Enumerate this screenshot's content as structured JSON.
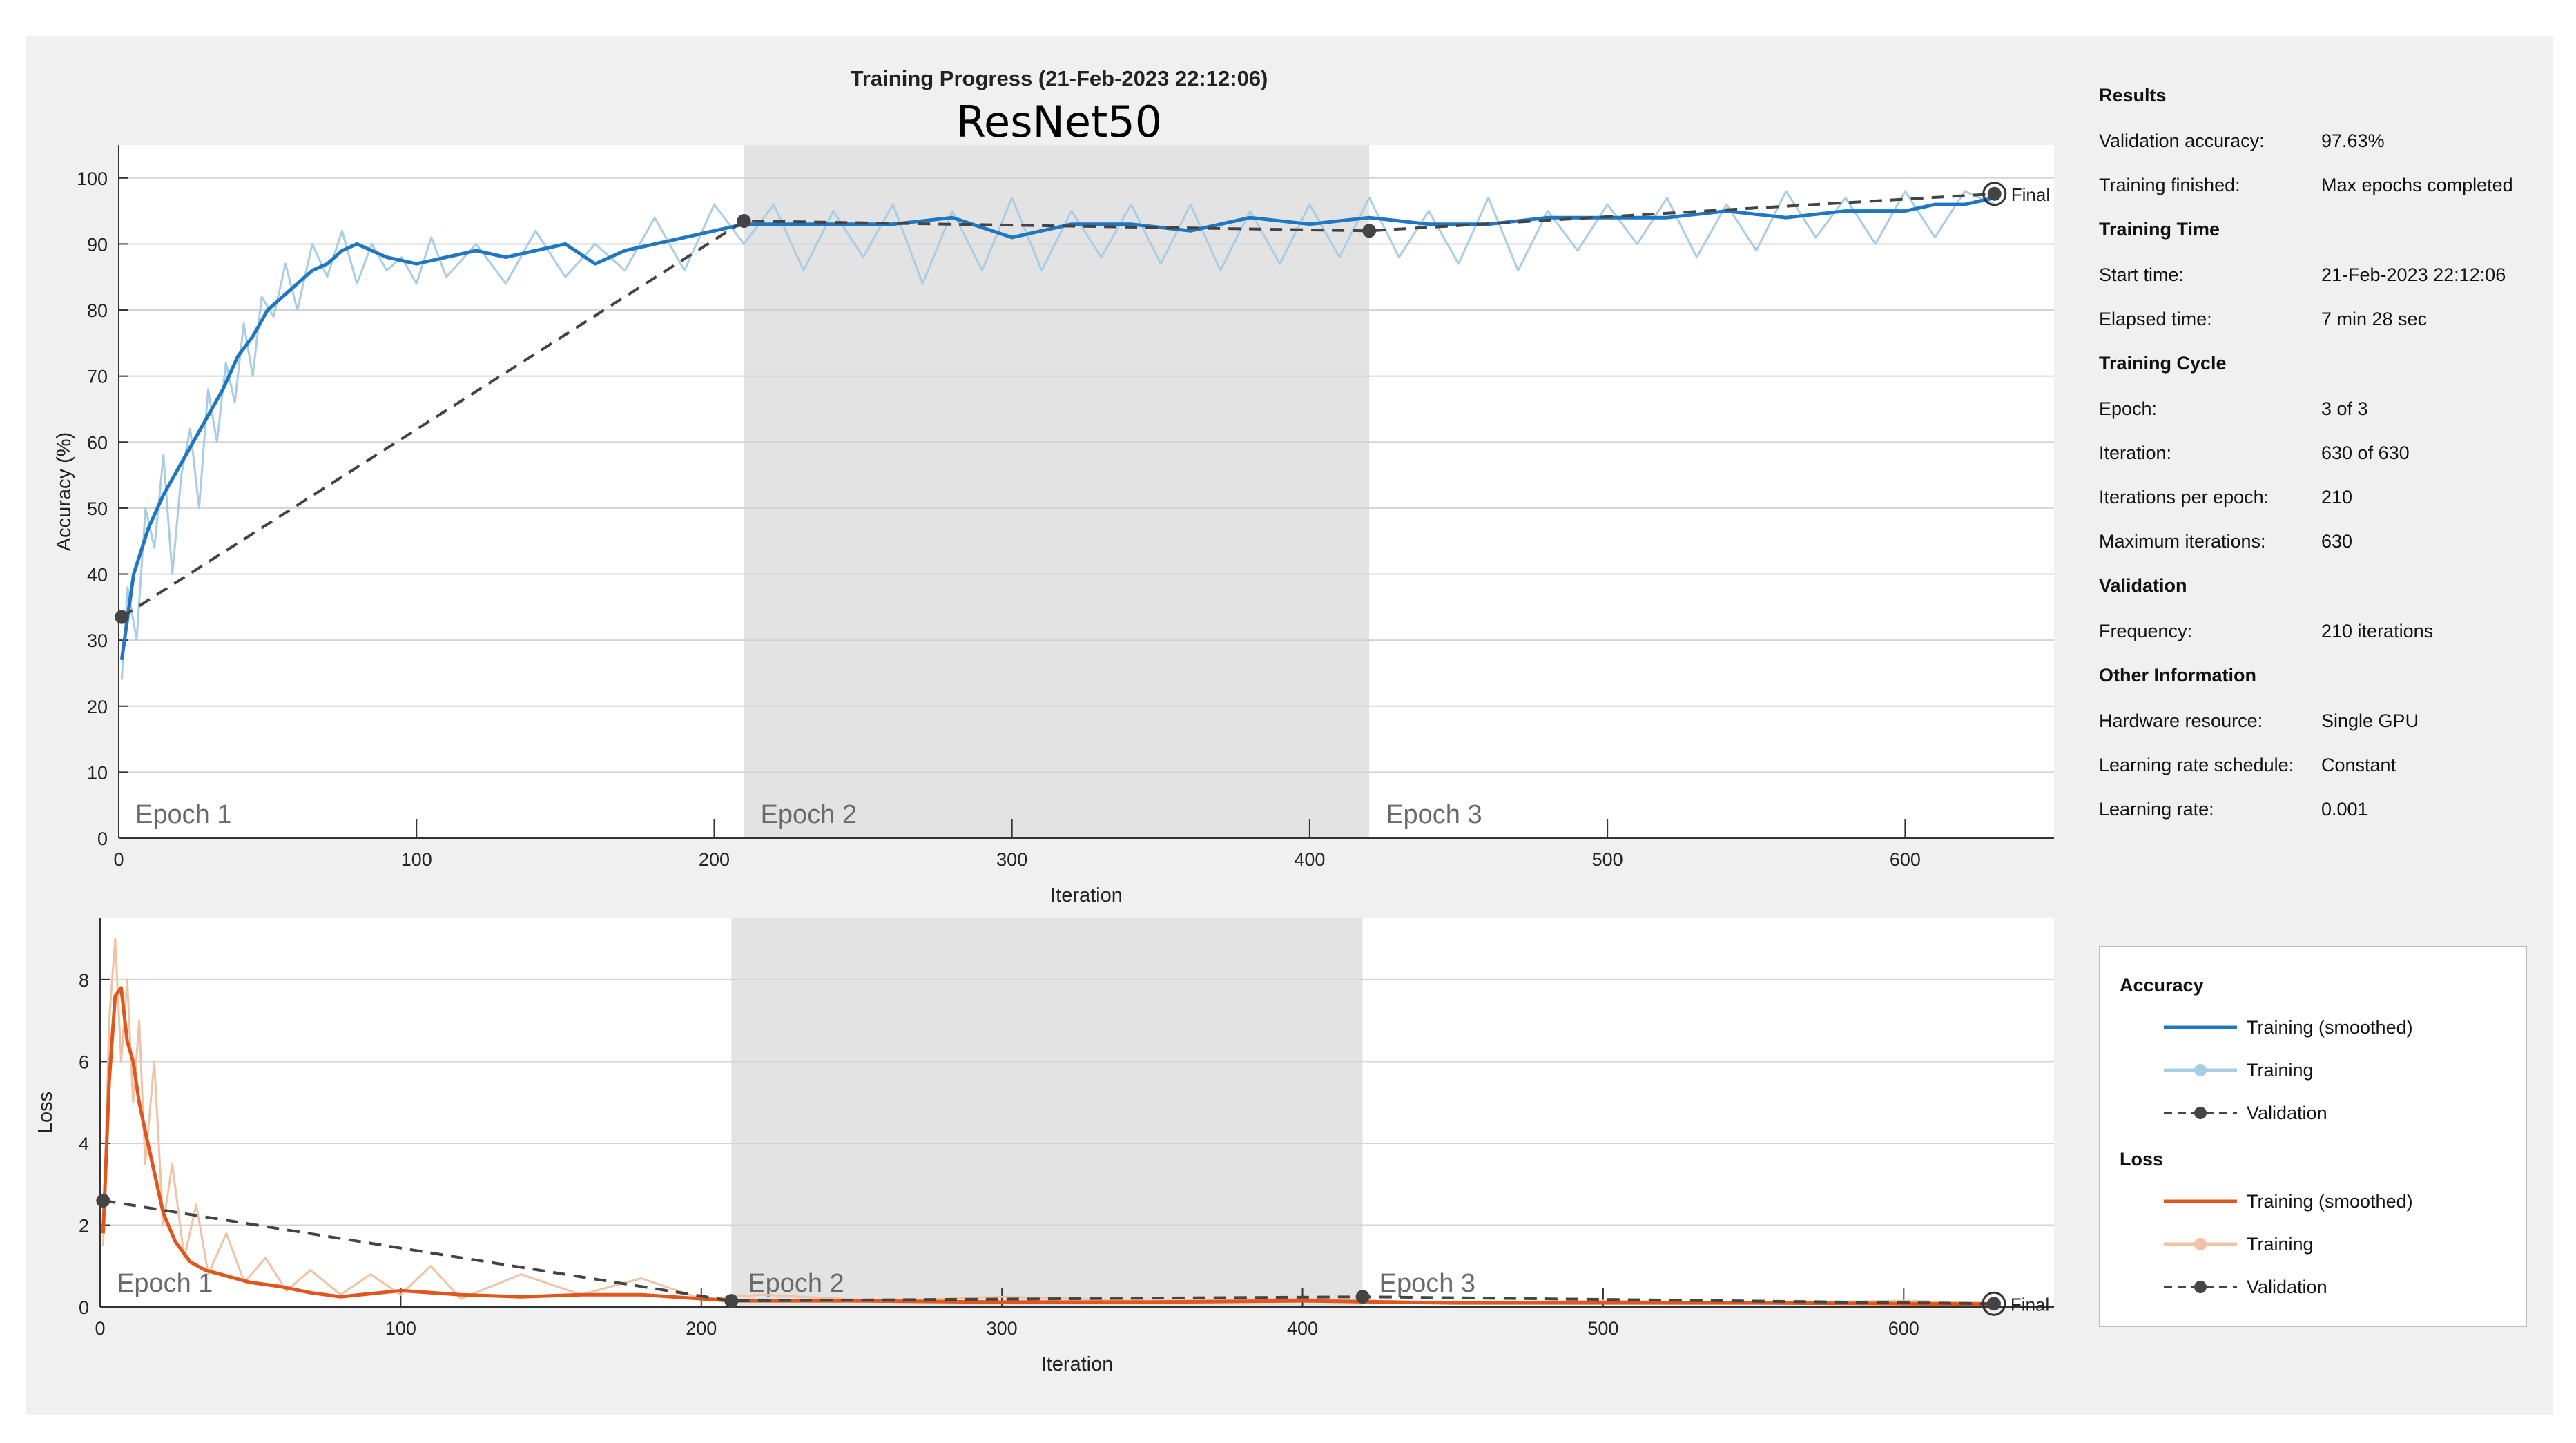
{
  "window": {
    "background": "#f0f0f0"
  },
  "figure": {
    "title": "Training Progress (21-Feb-2023 22:12:06)",
    "subtitle": "ResNet50"
  },
  "colors": {
    "accuracy_smoothed": "#1f77c1",
    "accuracy_raw": "#a9cde4",
    "loss_smoothed": "#e0561c",
    "loss_raw": "#f1c2a4",
    "validation": "#444444",
    "epoch_shade": "#e3e3e3"
  },
  "info_panel": {
    "sections": [
      {
        "title": "Results",
        "rows": [
          {
            "label": "Validation accuracy:",
            "value": "97.63%"
          },
          {
            "label": "Training finished:",
            "value": "Max epochs completed"
          }
        ]
      },
      {
        "title": "Training Time",
        "rows": [
          {
            "label": "Start time:",
            "value": "21-Feb-2023 22:12:06"
          },
          {
            "label": "Elapsed time:",
            "value": "7 min 28 sec"
          }
        ]
      },
      {
        "title": "Training Cycle",
        "rows": [
          {
            "label": "Epoch:",
            "value": "3 of 3"
          },
          {
            "label": "Iteration:",
            "value": "630 of 630"
          },
          {
            "label": "Iterations per epoch:",
            "value": "210"
          },
          {
            "label": "Maximum iterations:",
            "value": "630"
          }
        ]
      },
      {
        "title": "Validation",
        "rows": [
          {
            "label": "Frequency:",
            "value": "210 iterations"
          }
        ]
      },
      {
        "title": "Other Information",
        "rows": [
          {
            "label": "Hardware resource:",
            "value": "Single GPU"
          },
          {
            "label": "Learning rate schedule:",
            "value": "Constant"
          },
          {
            "label": "Learning rate:",
            "value": "0.001"
          }
        ]
      }
    ]
  },
  "legend": {
    "groups": [
      {
        "title": "Accuracy",
        "items": [
          {
            "label": "Training (smoothed)",
            "style": "smoothed",
            "color": "#1f77c1"
          },
          {
            "label": "Training",
            "style": "raw",
            "color": "#a9cde4"
          },
          {
            "label": "Validation",
            "style": "validation",
            "color": "#444444"
          }
        ]
      },
      {
        "title": "Loss",
        "items": [
          {
            "label": "Training (smoothed)",
            "style": "smoothed",
            "color": "#e0561c"
          },
          {
            "label": "Training",
            "style": "raw",
            "color": "#f1c2a4"
          },
          {
            "label": "Validation",
            "style": "validation",
            "color": "#444444"
          }
        ]
      }
    ]
  },
  "chart_data": [
    {
      "type": "line",
      "name": "accuracy",
      "xlabel": "Iteration",
      "ylabel": "Accuracy (%)",
      "xlim": [
        0,
        650
      ],
      "ylim": [
        0,
        105
      ],
      "xticks": [
        0,
        100,
        200,
        300,
        400,
        500,
        600
      ],
      "yticks": [
        0,
        10,
        20,
        30,
        40,
        50,
        60,
        70,
        80,
        90,
        100
      ],
      "grid": true,
      "epoch_regions": [
        {
          "label": "Epoch 1",
          "start": 0,
          "end": 210,
          "shaded": false
        },
        {
          "label": "Epoch 2",
          "start": 210,
          "end": 420,
          "shaded": true
        },
        {
          "label": "Epoch 3",
          "start": 420,
          "end": 630,
          "shaded": false
        }
      ],
      "series": [
        {
          "name": "Training (smoothed)",
          "style": "smoothed",
          "x": [
            1,
            5,
            10,
            15,
            20,
            25,
            30,
            35,
            40,
            45,
            50,
            55,
            60,
            65,
            70,
            75,
            80,
            90,
            100,
            110,
            120,
            130,
            140,
            150,
            160,
            170,
            180,
            190,
            200,
            210,
            220,
            240,
            260,
            280,
            300,
            320,
            340,
            360,
            380,
            400,
            420,
            440,
            460,
            480,
            500,
            520,
            540,
            560,
            580,
            600,
            610,
            620,
            630
          ],
          "y": [
            27,
            40,
            47,
            52,
            56,
            60,
            64,
            68,
            73,
            76,
            80,
            82,
            84,
            86,
            87,
            89,
            90,
            88,
            87,
            88,
            89,
            88,
            89,
            90,
            87,
            89,
            90,
            91,
            92,
            93,
            93,
            93,
            93,
            94,
            91,
            93,
            93,
            92,
            94,
            93,
            94,
            93,
            93,
            94,
            94,
            94,
            95,
            94,
            95,
            95,
            96,
            96,
            97
          ]
        },
        {
          "name": "Training",
          "style": "raw",
          "x": [
            1,
            3,
            6,
            9,
            12,
            15,
            18,
            21,
            24,
            27,
            30,
            33,
            36,
            39,
            42,
            45,
            48,
            52,
            56,
            60,
            65,
            70,
            75,
            80,
            85,
            90,
            95,
            100,
            105,
            110,
            120,
            130,
            140,
            150,
            160,
            170,
            180,
            190,
            200,
            210,
            220,
            230,
            240,
            250,
            260,
            270,
            280,
            290,
            300,
            310,
            320,
            330,
            340,
            350,
            360,
            370,
            380,
            390,
            400,
            410,
            420,
            430,
            440,
            450,
            460,
            470,
            480,
            490,
            500,
            510,
            520,
            530,
            540,
            550,
            560,
            570,
            580,
            590,
            600,
            610,
            620,
            630
          ],
          "y": [
            24,
            38,
            30,
            50,
            44,
            58,
            40,
            55,
            62,
            50,
            68,
            60,
            72,
            66,
            78,
            70,
            82,
            79,
            87,
            80,
            90,
            85,
            92,
            84,
            90,
            86,
            88,
            84,
            91,
            85,
            90,
            84,
            92,
            85,
            90,
            86,
            94,
            86,
            96,
            90,
            96,
            86,
            95,
            88,
            96,
            84,
            95,
            86,
            97,
            86,
            95,
            88,
            96,
            87,
            96,
            86,
            95,
            87,
            96,
            88,
            97,
            88,
            95,
            87,
            97,
            86,
            95,
            89,
            96,
            90,
            97,
            88,
            96,
            89,
            98,
            91,
            97,
            90,
            98,
            91,
            98,
            96
          ]
        },
        {
          "name": "Validation",
          "style": "validation",
          "x": [
            1,
            210,
            420,
            630
          ],
          "y": [
            33.5,
            93.5,
            92,
            97.6
          ]
        }
      ],
      "annotations": [
        {
          "text": "Final",
          "x": 630,
          "y": 97.6
        }
      ]
    },
    {
      "type": "line",
      "name": "loss",
      "xlabel": "Iteration",
      "ylabel": "Loss",
      "xlim": [
        0,
        650
      ],
      "ylim": [
        0,
        9.5
      ],
      "xticks": [
        0,
        100,
        200,
        300,
        400,
        500,
        600
      ],
      "yticks": [
        0,
        2,
        4,
        6,
        8
      ],
      "grid": true,
      "epoch_regions": [
        {
          "label": "Epoch 1",
          "start": 0,
          "end": 210,
          "shaded": false
        },
        {
          "label": "Epoch 2",
          "start": 210,
          "end": 420,
          "shaded": true
        },
        {
          "label": "Epoch 3",
          "start": 420,
          "end": 630,
          "shaded": false
        }
      ],
      "series": [
        {
          "name": "Training (smoothed)",
          "style": "smoothed",
          "x": [
            1,
            3,
            5,
            7,
            9,
            11,
            13,
            15,
            18,
            21,
            25,
            30,
            35,
            40,
            50,
            60,
            70,
            80,
            100,
            120,
            140,
            160,
            180,
            200,
            210,
            250,
            300,
            350,
            400,
            450,
            500,
            550,
            600,
            630
          ],
          "y": [
            1.8,
            5.5,
            7.6,
            7.8,
            6.5,
            6.0,
            5.0,
            4.3,
            3.3,
            2.3,
            1.6,
            1.1,
            0.9,
            0.8,
            0.6,
            0.5,
            0.35,
            0.25,
            0.4,
            0.3,
            0.25,
            0.3,
            0.3,
            0.2,
            0.15,
            0.15,
            0.12,
            0.12,
            0.15,
            0.1,
            0.1,
            0.1,
            0.08,
            0.07
          ]
        },
        {
          "name": "Training",
          "style": "raw",
          "x": [
            1,
            3,
            5,
            7,
            9,
            11,
            13,
            15,
            18,
            21,
            24,
            28,
            32,
            36,
            42,
            48,
            55,
            62,
            70,
            80,
            90,
            100,
            110,
            120,
            140,
            160,
            180,
            200,
            220,
            260,
            300,
            350,
            400,
            450,
            500,
            550,
            600,
            630
          ],
          "y": [
            1.5,
            7.0,
            9.0,
            6.0,
            8.0,
            5.0,
            7.0,
            3.5,
            6.0,
            2.0,
            3.5,
            1.2,
            2.5,
            0.8,
            1.8,
            0.6,
            1.2,
            0.4,
            0.9,
            0.3,
            0.8,
            0.3,
            1.0,
            0.2,
            0.8,
            0.3,
            0.7,
            0.2,
            0.3,
            0.15,
            0.25,
            0.15,
            0.2,
            0.1,
            0.15,
            0.1,
            0.15,
            0.1
          ]
        },
        {
          "name": "Validation",
          "style": "validation",
          "x": [
            1,
            210,
            420,
            630
          ],
          "y": [
            2.6,
            0.15,
            0.25,
            0.08
          ]
        }
      ],
      "annotations": [
        {
          "text": "Final",
          "x": 630,
          "y": 0.08
        }
      ]
    }
  ]
}
